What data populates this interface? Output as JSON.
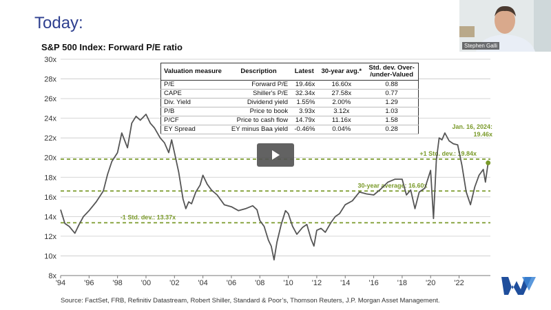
{
  "slide_title": "Today:",
  "chart_title": "S&P 500 Index: Forward P/E ratio",
  "source_note": "Source: FactSet, FRB, Refinitiv Datastream, Robert Shiller, Standard & Poor’s, Thomson Reuters, J.P. Morgan Asset Management.",
  "webcam": {
    "name": "Stephen Galli"
  },
  "table": {
    "headers": [
      "Valuation measure",
      "Description",
      "Latest",
      "30-year avg.*",
      "Std. dev. Over-\n/under-Valued"
    ],
    "rows": [
      [
        "P/E",
        "Forward P/E",
        "19.46x",
        "16.60x",
        "0.88"
      ],
      [
        "CAPE",
        "Shiller's P/E",
        "32.34x",
        "27.58x",
        "0.77"
      ],
      [
        "Div. Yield",
        "Dividend yield",
        "1.55%",
        "2.00%",
        "1.29"
      ],
      [
        "P/B",
        "Price to book",
        "3.93x",
        "3.12x",
        "1.03"
      ],
      [
        "P/CF",
        "Price to cash flow",
        "14.79x",
        "11.16x",
        "1.58"
      ],
      [
        "EY Spread",
        "EY minus Baa yield",
        "-0.46%",
        "0.04%",
        "0.28"
      ]
    ]
  },
  "colors": {
    "line": "#555555",
    "reference": "#7a9a2a",
    "title": "#2e3f8f",
    "logo": "#1f4e9c"
  },
  "chart_data": {
    "type": "line",
    "title": "S&P 500 Index: Forward P/E ratio",
    "ylim": [
      8,
      30
    ],
    "yticks": [
      8,
      10,
      12,
      14,
      16,
      18,
      20,
      22,
      24,
      26,
      28,
      30
    ],
    "ytick_labels": [
      "8x",
      "10x",
      "12x",
      "14x",
      "16x",
      "18x",
      "20x",
      "22x",
      "24x",
      "26x",
      "28x",
      "30x"
    ],
    "xlim": [
      1994,
      2024.2
    ],
    "xticks": [
      1994,
      1996,
      1998,
      2000,
      2002,
      2004,
      2006,
      2008,
      2010,
      2012,
      2014,
      2016,
      2018,
      2020,
      2022
    ],
    "xtick_labels": [
      "'94",
      "'96",
      "'98",
      "'00",
      "'02",
      "'04",
      "'06",
      "'08",
      "'10",
      "'12",
      "'14",
      "'16",
      "'18",
      "'20",
      "'22"
    ],
    "grid": "horizontal",
    "reference_lines": [
      {
        "value": 19.84,
        "label": "+1 Std. dev.: 19.84x"
      },
      {
        "value": 16.6,
        "label": "30-year average: 16.60x"
      },
      {
        "value": 13.37,
        "label": "-1 Std. dev.: 13.37x"
      }
    ],
    "annotation": {
      "lines": [
        "Jan. 16, 2024:",
        "19.46x"
      ],
      "x": 2024.04,
      "y": 19.46
    },
    "series": [
      {
        "x": [
          1994.0,
          1994.3,
          1994.6,
          1995.0,
          1995.3,
          1995.6,
          1996.0,
          1996.5,
          1997.0,
          1997.3,
          1997.6,
          1998.0,
          1998.3,
          1998.7,
          1999.0,
          1999.3,
          1999.6,
          2000.0,
          2000.3,
          2000.6,
          2001.0,
          2001.3,
          2001.6,
          2001.8,
          2002.0,
          2002.3,
          2002.6,
          2002.8,
          2003.0,
          2003.2,
          2003.5,
          2003.8,
          2004.0,
          2004.3,
          2004.6,
          2005.0,
          2005.5,
          2006.0,
          2006.5,
          2007.0,
          2007.5,
          2007.8,
          2008.0,
          2008.3,
          2008.6,
          2008.8,
          2009.0,
          2009.2,
          2009.5,
          2009.8,
          2010.0,
          2010.3,
          2010.6,
          2011.0,
          2011.3,
          2011.6,
          2011.8,
          2012.0,
          2012.3,
          2012.6,
          2013.0,
          2013.3,
          2013.6,
          2014.0,
          2014.5,
          2015.0,
          2015.5,
          2016.0,
          2016.5,
          2017.0,
          2017.5,
          2018.0,
          2018.3,
          2018.6,
          2018.9,
          2019.2,
          2019.6,
          2020.0,
          2020.2,
          2020.4,
          2020.6,
          2020.8,
          2021.0,
          2021.3,
          2021.6,
          2021.9,
          2022.2,
          2022.5,
          2022.8,
          2023.1,
          2023.4,
          2023.7,
          2023.85,
          2024.04
        ],
        "values": [
          14.7,
          13.3,
          13.0,
          12.3,
          13.2,
          14.0,
          14.6,
          15.5,
          16.6,
          18.3,
          19.6,
          20.5,
          22.5,
          21.0,
          23.5,
          24.2,
          23.8,
          24.4,
          23.5,
          23.0,
          22.0,
          21.5,
          20.5,
          21.8,
          20.5,
          18.5,
          15.8,
          14.8,
          15.5,
          15.3,
          16.5,
          17.2,
          18.2,
          17.3,
          16.7,
          16.2,
          15.2,
          15.0,
          14.6,
          14.8,
          15.1,
          14.7,
          13.6,
          13.0,
          11.6,
          11.0,
          9.6,
          11.4,
          13.2,
          14.6,
          14.3,
          13.0,
          12.2,
          12.9,
          13.2,
          11.7,
          11.0,
          12.6,
          12.8,
          12.4,
          13.4,
          14.0,
          14.3,
          15.2,
          15.6,
          16.5,
          16.3,
          16.2,
          16.8,
          17.5,
          17.8,
          17.8,
          16.2,
          16.7,
          14.8,
          16.5,
          16.9,
          18.7,
          13.8,
          19.7,
          22.0,
          21.8,
          22.5,
          21.7,
          21.4,
          21.3,
          19.2,
          16.5,
          15.2,
          17.0,
          18.2,
          18.8,
          17.5,
          19.46
        ]
      }
    ]
  }
}
